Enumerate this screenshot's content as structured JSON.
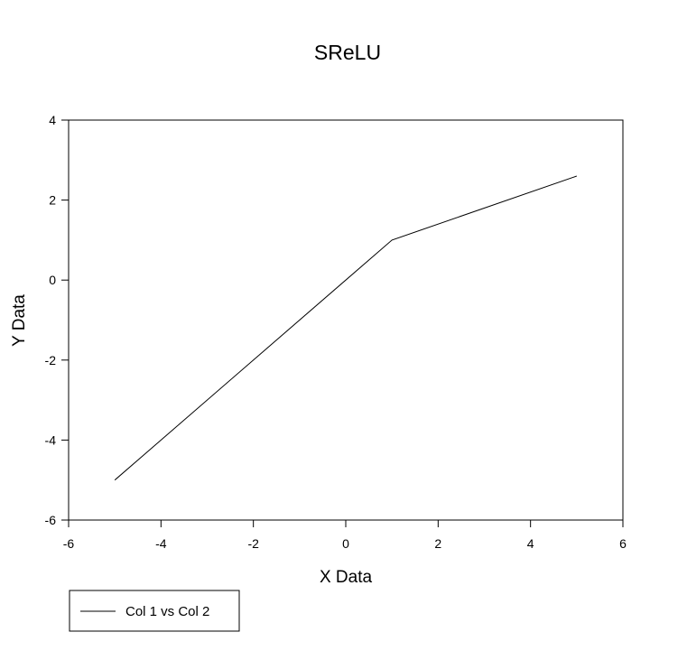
{
  "chart_data": {
    "type": "line",
    "title": "SReLU",
    "xlabel": "X Data",
    "ylabel": "Y Data",
    "xlim": [
      -6,
      6
    ],
    "ylim": [
      -6,
      4
    ],
    "xticks": [
      -6,
      -4,
      -2,
      0,
      2,
      4,
      6
    ],
    "yticks": [
      -6,
      -4,
      -2,
      0,
      2,
      4
    ],
    "xtick_labels": [
      "-6",
      "-4",
      "-2",
      "0",
      "2",
      "4",
      "6"
    ],
    "ytick_labels": [
      "-6",
      "-4",
      "-2",
      "0",
      "2",
      "4"
    ],
    "grid": false,
    "legend_position": "bottom-left",
    "series": [
      {
        "name": "Col 1 vs Col 2",
        "color": "#000000",
        "x": [
          -5,
          1,
          5
        ],
        "y": [
          -5,
          1,
          2.6
        ]
      }
    ]
  }
}
